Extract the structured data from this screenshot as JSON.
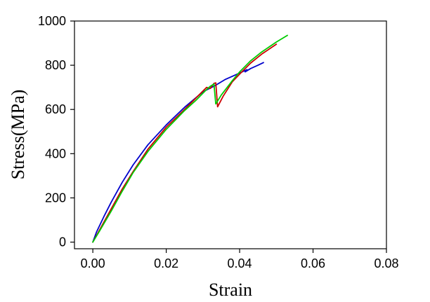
{
  "chart_data": {
    "type": "line",
    "title": "",
    "xlabel": "Strain",
    "ylabel": "Stress(MPa)",
    "xlim": [
      -0.005,
      0.08
    ],
    "ylim": [
      -30,
      1000
    ],
    "x_ticks": [
      0.0,
      0.02,
      0.04,
      0.06,
      0.08
    ],
    "x_tick_labels": [
      "0.00",
      "0.02",
      "0.04",
      "0.06",
      "0.08"
    ],
    "y_ticks": [
      0,
      200,
      400,
      600,
      800,
      1000
    ],
    "y_tick_labels": [
      "0",
      "200",
      "400",
      "600",
      "800",
      "1000"
    ],
    "grid": false,
    "legend": "none",
    "series": [
      {
        "color": "#0000cc",
        "points": [
          [
            0.0,
            0
          ],
          [
            0.001,
            45
          ],
          [
            0.003,
            115
          ],
          [
            0.005,
            180
          ],
          [
            0.008,
            270
          ],
          [
            0.011,
            350
          ],
          [
            0.015,
            440
          ],
          [
            0.02,
            530
          ],
          [
            0.025,
            610
          ],
          [
            0.03,
            680
          ],
          [
            0.033,
            705
          ],
          [
            0.036,
            735
          ],
          [
            0.038,
            750
          ],
          [
            0.04,
            765
          ],
          [
            0.042,
            780
          ],
          [
            0.0415,
            770
          ],
          [
            0.043,
            785
          ],
          [
            0.045,
            800
          ],
          [
            0.0465,
            812
          ]
        ]
      },
      {
        "color": "#cc0000",
        "points": [
          [
            0.0,
            0
          ],
          [
            0.002,
            60
          ],
          [
            0.005,
            150
          ],
          [
            0.008,
            240
          ],
          [
            0.011,
            320
          ],
          [
            0.015,
            420
          ],
          [
            0.02,
            520
          ],
          [
            0.025,
            600
          ],
          [
            0.028,
            650
          ],
          [
            0.031,
            700
          ],
          [
            0.032,
            695
          ],
          [
            0.033,
            718
          ],
          [
            0.0335,
            720
          ],
          [
            0.034,
            612
          ],
          [
            0.0355,
            660
          ],
          [
            0.038,
            725
          ],
          [
            0.04,
            760
          ],
          [
            0.043,
            810
          ],
          [
            0.046,
            850
          ],
          [
            0.05,
            895
          ]
        ]
      },
      {
        "color": "#00cc00",
        "points": [
          [
            0.0,
            0
          ],
          [
            0.002,
            55
          ],
          [
            0.005,
            140
          ],
          [
            0.008,
            230
          ],
          [
            0.011,
            315
          ],
          [
            0.015,
            410
          ],
          [
            0.02,
            510
          ],
          [
            0.025,
            595
          ],
          [
            0.028,
            640
          ],
          [
            0.031,
            690
          ],
          [
            0.032,
            705
          ],
          [
            0.033,
            715
          ],
          [
            0.0335,
            625
          ],
          [
            0.035,
            665
          ],
          [
            0.038,
            730
          ],
          [
            0.04,
            770
          ],
          [
            0.043,
            820
          ],
          [
            0.046,
            860
          ],
          [
            0.05,
            905
          ],
          [
            0.053,
            935
          ]
        ]
      }
    ]
  }
}
